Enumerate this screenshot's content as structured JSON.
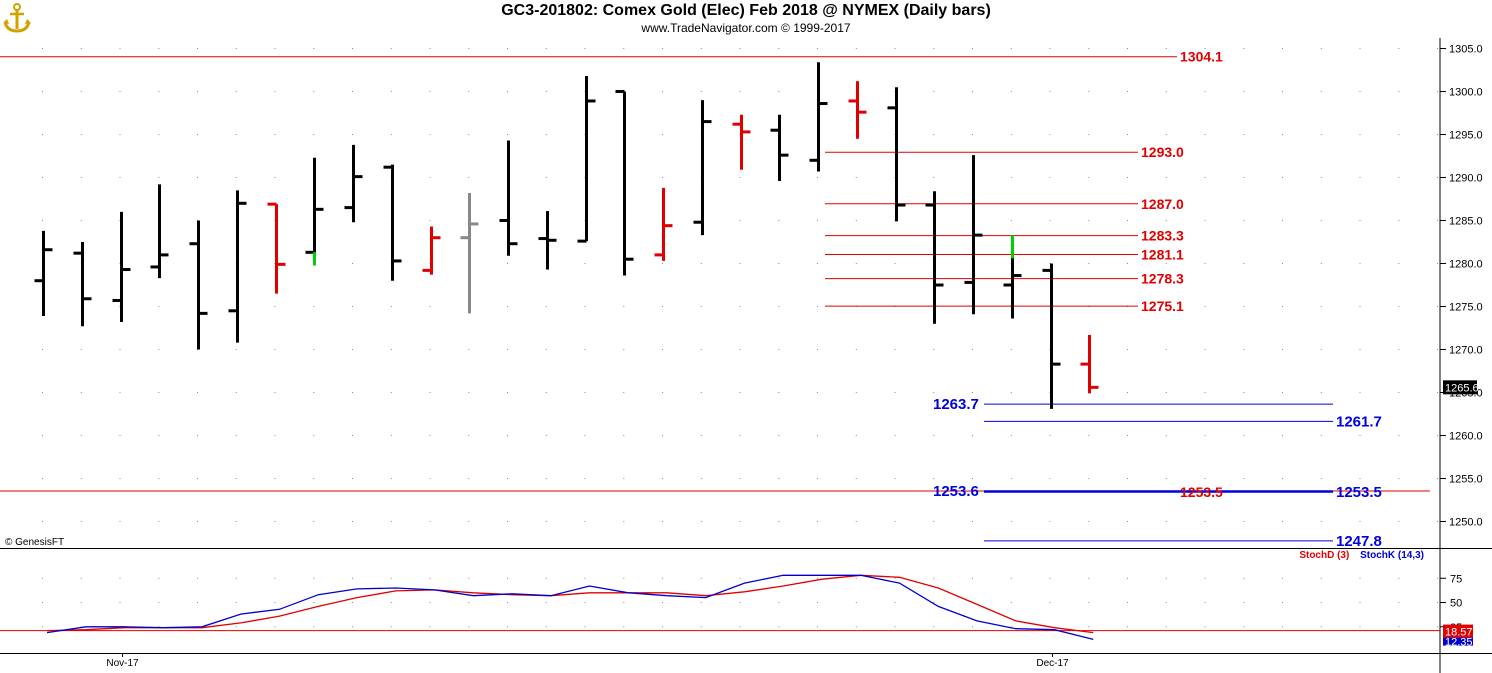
{
  "header": {
    "title": "GC3-201802:  Comex Gold (Elec) Feb 2018 @ NYMEX  (Daily bars)",
    "subtitle": "www.TradeNavigator.com © 1999-2017"
  },
  "copyright": "© GenesisFT",
  "colors": {
    "up_bar": "#000000",
    "down_bar": "#e00000",
    "green": "#00d000",
    "gray": "#888888",
    "red_level": "#e00000",
    "blue_level": "#0000dd",
    "stoch_d": "#e00000",
    "stoch_k": "#0000cc"
  },
  "chart_data": [
    {
      "type": "ohlc",
      "ylim": [
        1245,
        1307
      ],
      "yticks": [
        "1305.0",
        "1300.0",
        "1295.0",
        "1290.0",
        "1285.0",
        "1280.0",
        "1275.0",
        "1270.0",
        "1265.0",
        "1260.0",
        "1255.0",
        "1250.0"
      ],
      "xticks": [
        {
          "label": "Nov-17",
          "index": 2
        },
        {
          "label": "Dec-17",
          "index": 26
        }
      ],
      "last_price": "1265.6",
      "bars": [
        {
          "o": 1278.0,
          "h": 1283.8,
          "l": 1273.9,
          "c": 1281.6,
          "color": "black"
        },
        {
          "o": 1281.2,
          "h": 1282.5,
          "l": 1272.7,
          "c": 1275.9,
          "color": "black"
        },
        {
          "o": 1275.7,
          "h": 1286.0,
          "l": 1273.2,
          "c": 1279.3,
          "color": "black"
        },
        {
          "o": 1279.6,
          "h": 1289.2,
          "l": 1278.3,
          "c": 1281.0,
          "color": "black"
        },
        {
          "o": 1282.3,
          "h": 1285.0,
          "l": 1270.0,
          "c": 1274.2,
          "color": "black"
        },
        {
          "o": 1274.5,
          "h": 1288.5,
          "l": 1270.8,
          "c": 1287.0,
          "color": "black"
        },
        {
          "o": 1286.9,
          "h": 1286.9,
          "l": 1276.5,
          "c": 1279.9,
          "color": "red"
        },
        {
          "o": 1281.3,
          "h": 1292.3,
          "l": 1279.8,
          "c": 1286.3,
          "color": "black",
          "tail": "green"
        },
        {
          "o": 1286.5,
          "h": 1293.8,
          "l": 1284.8,
          "c": 1290.1,
          "color": "black"
        },
        {
          "o": 1291.2,
          "h": 1291.5,
          "l": 1278.0,
          "c": 1280.3,
          "color": "black"
        },
        {
          "o": 1279.2,
          "h": 1284.3,
          "l": 1278.7,
          "c": 1283.0,
          "color": "red"
        },
        {
          "o": 1283.0,
          "h": 1288.2,
          "l": 1274.2,
          "c": 1284.6,
          "color": "gray"
        },
        {
          "o": 1285.0,
          "h": 1294.3,
          "l": 1280.9,
          "c": 1282.3,
          "color": "black"
        },
        {
          "o": 1282.9,
          "h": 1286.1,
          "l": 1279.3,
          "c": 1282.7,
          "color": "black"
        },
        {
          "o": 1282.6,
          "h": 1301.8,
          "l": 1282.6,
          "c": 1298.9,
          "color": "black"
        },
        {
          "o": 1300.0,
          "h": 1300.0,
          "l": 1278.6,
          "c": 1280.5,
          "color": "black"
        },
        {
          "o": 1281.0,
          "h": 1288.8,
          "l": 1280.3,
          "c": 1284.4,
          "color": "red"
        },
        {
          "o": 1284.8,
          "h": 1299.0,
          "l": 1283.3,
          "c": 1296.5,
          "color": "black"
        },
        {
          "o": 1296.2,
          "h": 1297.3,
          "l": 1290.9,
          "c": 1295.3,
          "color": "red"
        },
        {
          "o": 1295.5,
          "h": 1297.3,
          "l": 1289.6,
          "c": 1292.6,
          "color": "black"
        },
        {
          "o": 1292.0,
          "h": 1303.4,
          "l": 1290.7,
          "c": 1298.6,
          "color": "black"
        },
        {
          "o": 1298.9,
          "h": 1301.2,
          "l": 1294.5,
          "c": 1297.6,
          "color": "red"
        },
        {
          "o": 1298.1,
          "h": 1300.5,
          "l": 1284.9,
          "c": 1286.8,
          "color": "black"
        },
        {
          "o": 1286.8,
          "h": 1288.4,
          "l": 1273.0,
          "c": 1277.5,
          "color": "black"
        },
        {
          "o": 1277.8,
          "h": 1292.6,
          "l": 1274.1,
          "c": 1283.3,
          "color": "black"
        },
        {
          "o": 1277.5,
          "h": 1283.3,
          "l": 1273.6,
          "c": 1278.6,
          "color": "black",
          "tail": "green"
        },
        {
          "o": 1279.2,
          "h": 1280.0,
          "l": 1263.1,
          "c": 1268.3,
          "color": "black"
        },
        {
          "o": 1268.3,
          "h": 1271.7,
          "l": 1264.9,
          "c": 1265.6,
          "color": "red"
        }
      ],
      "levels": [
        {
          "value": 1304.1,
          "label": "1304.1",
          "color": "red",
          "from": -1,
          "to": 1177,
          "label_x": 1180
        },
        {
          "value": 1293.0,
          "label": "1293.0",
          "color": "red",
          "from": 825,
          "to": 1138,
          "label_x": 1141
        },
        {
          "value": 1287.0,
          "label": "1287.0",
          "color": "red",
          "from": 825,
          "to": 1138,
          "label_x": 1141
        },
        {
          "value": 1283.3,
          "label": "1283.3",
          "color": "red",
          "from": 825,
          "to": 1138,
          "label_x": 1141
        },
        {
          "value": 1281.1,
          "label": "1281.1",
          "color": "red",
          "from": 825,
          "to": 1138,
          "label_x": 1141
        },
        {
          "value": 1278.3,
          "label": "1278.3",
          "color": "red",
          "from": 825,
          "to": 1138,
          "label_x": 1141
        },
        {
          "value": 1275.1,
          "label": "1275.1",
          "color": "red",
          "from": 825,
          "to": 1138,
          "label_x": 1141
        },
        {
          "value": 1253.6,
          "label": "1253.6",
          "color": "red",
          "from": -1,
          "to": 1430,
          "label_x": null
        },
        {
          "value": 1263.7,
          "label": "1263.7",
          "color": "blue",
          "from": 984,
          "to": 1333,
          "label_x": 933
        },
        {
          "value": 1261.7,
          "label": "1261.7",
          "color": "blue",
          "from": 984,
          "to": 1333,
          "label_x": 1336
        },
        {
          "value": 1253.5,
          "label": "1253.5",
          "color": "blue",
          "from": 984,
          "to": 1333,
          "label_x": 1336
        },
        {
          "value": 1253.6,
          "label": "1253.6",
          "color": "blue",
          "from": 984,
          "to": 1333,
          "label_x": 933
        },
        {
          "value": 1253.5,
          "label": "1253.5",
          "color": "red",
          "from": null,
          "to": null,
          "label_x": 1180
        },
        {
          "value": 1247.8,
          "label": "1247.8",
          "color": "blue",
          "from": 984,
          "to": 1333,
          "label_x": 1336
        }
      ]
    },
    {
      "type": "line",
      "title": "",
      "ylim": [
        0,
        100
      ],
      "yticks": [
        "75",
        "50",
        "25"
      ],
      "series": [
        {
          "name": "StochD (3)",
          "color": "red",
          "values": [
            21,
            22,
            24,
            24,
            24,
            29,
            36,
            46,
            55,
            62,
            63,
            60,
            58,
            57,
            60,
            60,
            60,
            57,
            61,
            67,
            74,
            78,
            76,
            65,
            48,
            31,
            24,
            19
          ]
        },
        {
          "name": "StochK (14,3)",
          "color": "blue",
          "values": [
            19,
            25,
            25,
            24,
            25,
            38,
            43,
            58,
            64,
            65,
            63,
            57,
            59,
            57,
            67,
            60,
            57,
            55,
            70,
            78,
            78,
            78,
            70,
            46,
            31,
            23,
            22,
            12
          ]
        }
      ],
      "last_values": {
        "d": "18.57",
        "k": "12.35"
      },
      "reference_level": 21
    }
  ]
}
